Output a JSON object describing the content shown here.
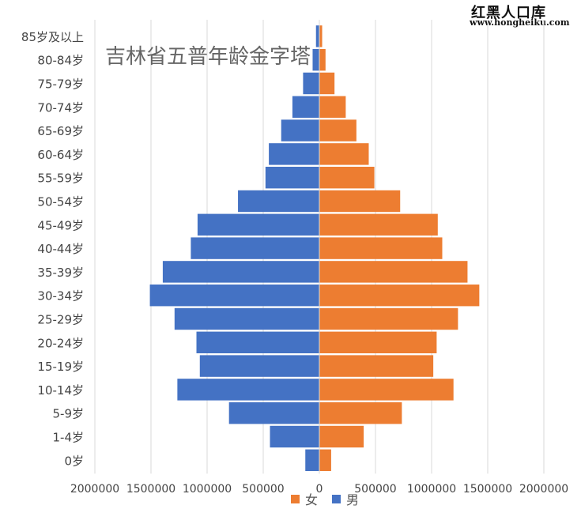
{
  "watermark": {
    "title": "红黑人口库",
    "url": "www.hongheiku.com"
  },
  "chart_data": {
    "type": "bar",
    "orientation": "horizontal",
    "title": "吉林省五普年龄金字塔",
    "categories": [
      "0岁",
      "1-4岁",
      "5-9岁",
      "10-14岁",
      "15-19岁",
      "20-24岁",
      "25-29岁",
      "30-34岁",
      "35-39岁",
      "40-44岁",
      "45-49岁",
      "50-54岁",
      "55-59岁",
      "60-64岁",
      "65-69岁",
      "70-74岁",
      "75-79岁",
      "80-84岁",
      "85岁及以上"
    ],
    "series": [
      {
        "name": "女",
        "color": "#ED7D31",
        "values": [
          105000,
          395000,
          735000,
          1195000,
          1015000,
          1045000,
          1235000,
          1425000,
          1320000,
          1095000,
          1055000,
          720000,
          490000,
          440000,
          330000,
          235000,
          135000,
          55000,
          25000
        ]
      },
      {
        "name": "男",
        "color": "#4472C4",
        "values": [
          125000,
          440000,
          805000,
          1265000,
          1065000,
          1095000,
          1290000,
          1510000,
          1395000,
          1145000,
          1085000,
          725000,
          480000,
          450000,
          340000,
          240000,
          145000,
          60000,
          30000
        ]
      }
    ],
    "xaxis_ticks": [
      "2000000",
      "1500000",
      "1000000",
      "500000",
      "0",
      "500000",
      "1000000",
      "1500000",
      "2000000"
    ],
    "xlim": [
      -2000000,
      2000000
    ],
    "grid": true,
    "legend_position": "bottom"
  }
}
